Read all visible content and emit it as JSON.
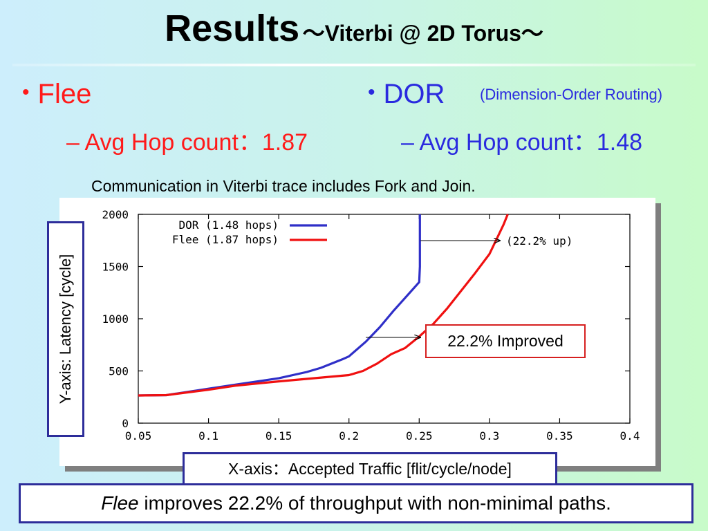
{
  "slide": {
    "title_main": "Results",
    "title_sub": "～Viterbi @ 2D Torus～",
    "bullets": {
      "flee": {
        "label": "Flee",
        "sub_text": "– Avg Hop count：1.87"
      },
      "dor": {
        "label": "DOR",
        "note": "(Dimension-Order Routing)",
        "sub_text": "– Avg Hop count：1.48"
      }
    },
    "caption": "Communication in Viterbi trace includes Fork and Join.",
    "y_axis_label": "Y-axis: Latency [cycle]",
    "x_axis_label": "X-axis：Accepted Traffic [flit/cycle/node]",
    "improved_label": "22.2% Improved",
    "bottom_italic": "Flee",
    "bottom_rest": " improves 22.2% of throughput with non-minimal paths.",
    "colors": {
      "dor": "#2f2fc8",
      "flee": "#f01010",
      "accent_border": "#2d2d9a",
      "improved_border": "#d61f1f"
    }
  },
  "chart_data": {
    "type": "line",
    "xlim": [
      0.05,
      0.4
    ],
    "ylim": [
      0,
      2000
    ],
    "x_ticks": [
      "0.05",
      "0.1",
      "0.15",
      "0.2",
      "0.25",
      "0.3",
      "0.35",
      "0.4"
    ],
    "y_ticks": [
      "0",
      "500",
      "1000",
      "1500",
      "2000"
    ],
    "grid": false,
    "legend_position": "top-left",
    "annotation": "(22.2% up)",
    "series": [
      {
        "name": "DOR (1.48 hops)",
        "color": "#2f2fc8",
        "points": [
          [
            0.05,
            265
          ],
          [
            0.07,
            268
          ],
          [
            0.1,
            330
          ],
          [
            0.12,
            370
          ],
          [
            0.15,
            430
          ],
          [
            0.17,
            490
          ],
          [
            0.18,
            530
          ],
          [
            0.195,
            610
          ],
          [
            0.2,
            640
          ],
          [
            0.212,
            780
          ],
          [
            0.222,
            920
          ],
          [
            0.232,
            1080
          ],
          [
            0.242,
            1230
          ],
          [
            0.25,
            1350
          ],
          [
            0.2505,
            1500
          ],
          [
            0.2505,
            2000
          ]
        ]
      },
      {
        "name": "Flee (1.87 hops)",
        "color": "#f01010",
        "points": [
          [
            0.05,
            265
          ],
          [
            0.07,
            268
          ],
          [
            0.1,
            320
          ],
          [
            0.12,
            360
          ],
          [
            0.15,
            400
          ],
          [
            0.2,
            460
          ],
          [
            0.21,
            500
          ],
          [
            0.22,
            570
          ],
          [
            0.23,
            660
          ],
          [
            0.24,
            720
          ],
          [
            0.25,
            830
          ],
          [
            0.26,
            950
          ],
          [
            0.27,
            1100
          ],
          [
            0.28,
            1270
          ],
          [
            0.29,
            1440
          ],
          [
            0.3,
            1620
          ],
          [
            0.31,
            1900
          ],
          [
            0.313,
            2000
          ]
        ]
      }
    ]
  }
}
